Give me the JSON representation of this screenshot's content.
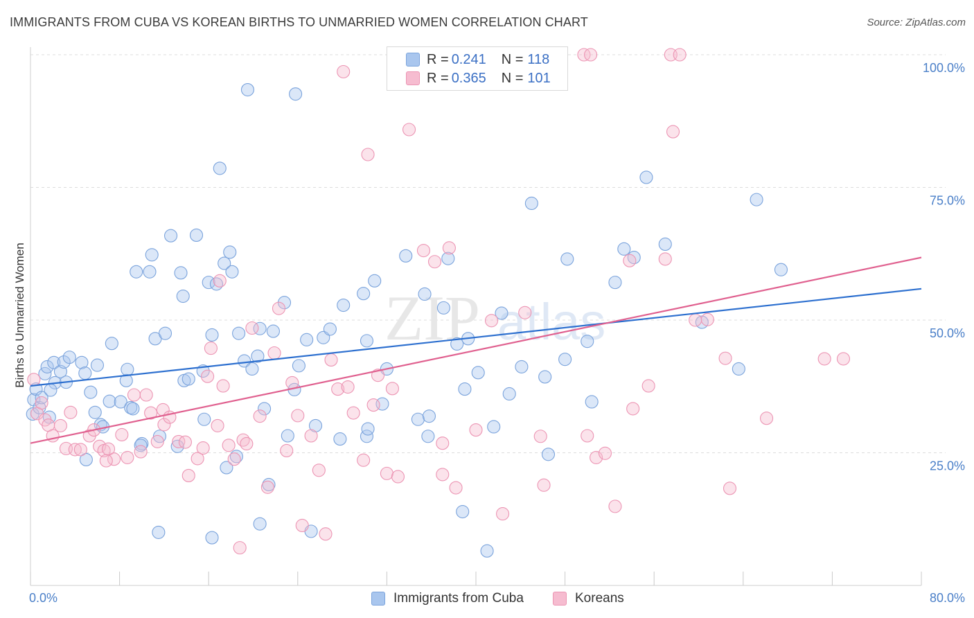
{
  "title": "IMMIGRANTS FROM CUBA VS KOREAN BIRTHS TO UNMARRIED WOMEN CORRELATION CHART",
  "source": "Source: ZipAtlas.com",
  "watermark": {
    "zip": "ZIP",
    "atlas": "atlas"
  },
  "colors": {
    "blue_fill": "#a9c6ee",
    "blue_stroke": "#7aa3dc",
    "blue_line": "#2c6fcf",
    "pink_fill": "#f6bcd0",
    "pink_stroke": "#ec94b3",
    "pink_line": "#e0608f",
    "grid": "#dcdcdc",
    "axis_text": "#4a7fc8"
  },
  "legend_top": {
    "rows": [
      {
        "r_label": "R = ",
        "r_value": "0.241",
        "n_label": "N = ",
        "n_value": "118"
      },
      {
        "r_label": "R = ",
        "r_value": "0.365",
        "n_label": "N = ",
        "n_value": "101"
      }
    ]
  },
  "legend_bottom": {
    "series1": "Immigrants from Cuba",
    "series2": "Koreans"
  },
  "chart_data": {
    "type": "scatter",
    "title": "IMMIGRANTS FROM CUBA VS KOREAN BIRTHS TO UNMARRIED WOMEN CORRELATION CHART",
    "xlabel": "",
    "ylabel": "Births to Unmarried Women",
    "xlim": [
      0,
      80
    ],
    "ylim": [
      0,
      100
    ],
    "x_tick_labels": [
      "0.0%",
      "80.0%"
    ],
    "y_tick_labels": [
      "25.0%",
      "50.0%",
      "75.0%",
      "100.0%"
    ],
    "y_ticks": [
      25,
      50,
      75,
      100
    ],
    "x_minor_ticks": [
      0,
      8,
      16,
      24,
      32,
      40,
      48,
      56,
      64,
      72,
      80
    ],
    "grid": true,
    "legend_position": "top-center",
    "series": [
      {
        "name": "Immigrants from Cuba",
        "r": 0.241,
        "n": 118,
        "trend": {
          "x": [
            0,
            80
          ],
          "y": [
            37.6,
            55.9
          ]
        },
        "points": [
          [
            0.2,
            32.3
          ],
          [
            0.3,
            35.0
          ],
          [
            0.5,
            37.0
          ],
          [
            0.8,
            33.5
          ],
          [
            1.0,
            35.4
          ],
          [
            1.3,
            39.9
          ],
          [
            1.5,
            41.2
          ],
          [
            1.7,
            31.7
          ],
          [
            2.1,
            42.0
          ],
          [
            2.2,
            38.2
          ],
          [
            2.7,
            40.3
          ],
          [
            3.0,
            42.1
          ],
          [
            3.2,
            38.3
          ],
          [
            3.5,
            43.0
          ],
          [
            4.6,
            42.0
          ],
          [
            4.9,
            40.0
          ],
          [
            5.0,
            23.7
          ],
          [
            5.4,
            36.4
          ],
          [
            5.8,
            32.6
          ],
          [
            6.0,
            41.5
          ],
          [
            6.3,
            30.3
          ],
          [
            6.5,
            29.9
          ],
          [
            7.1,
            34.7
          ],
          [
            7.3,
            45.6
          ],
          [
            8.1,
            34.6
          ],
          [
            8.6,
            38.6
          ],
          [
            8.7,
            40.7
          ],
          [
            9.0,
            33.5
          ],
          [
            9.2,
            33.3
          ],
          [
            9.5,
            59.1
          ],
          [
            10.0,
            26.7
          ],
          [
            10.7,
            59.1
          ],
          [
            10.9,
            62.3
          ],
          [
            11.2,
            46.5
          ],
          [
            11.5,
            10.0
          ],
          [
            11.6,
            28.1
          ],
          [
            12.1,
            47.5
          ],
          [
            12.6,
            65.9
          ],
          [
            13.2,
            26.2
          ],
          [
            13.5,
            58.9
          ],
          [
            13.7,
            54.5
          ],
          [
            13.8,
            38.6
          ],
          [
            14.9,
            66.0
          ],
          [
            15.5,
            40.4
          ],
          [
            15.6,
            31.3
          ],
          [
            16.0,
            57.1
          ],
          [
            16.3,
            47.2
          ],
          [
            16.7,
            56.8
          ],
          [
            17.0,
            78.6
          ],
          [
            17.4,
            60.7
          ],
          [
            17.6,
            22.2
          ],
          [
            17.9,
            62.8
          ],
          [
            18.1,
            59.1
          ],
          [
            18.5,
            24.3
          ],
          [
            18.7,
            47.5
          ],
          [
            19.2,
            42.3
          ],
          [
            19.5,
            93.4
          ],
          [
            19.9,
            40.8
          ],
          [
            20.4,
            43.2
          ],
          [
            20.6,
            48.4
          ],
          [
            21.0,
            33.3
          ],
          [
            21.4,
            19.0
          ],
          [
            21.8,
            47.9
          ],
          [
            22.8,
            53.3
          ],
          [
            23.1,
            28.2
          ],
          [
            23.7,
            36.9
          ],
          [
            23.8,
            92.6
          ],
          [
            24.1,
            41.4
          ],
          [
            24.8,
            46.3
          ],
          [
            25.6,
            30.1
          ],
          [
            26.3,
            46.7
          ],
          [
            26.9,
            48.3
          ],
          [
            27.8,
            27.6
          ],
          [
            28.1,
            52.8
          ],
          [
            29.9,
            55.0
          ],
          [
            30.2,
            46.1
          ],
          [
            30.2,
            28.1
          ],
          [
            30.3,
            29.5
          ],
          [
            30.9,
            57.4
          ],
          [
            32.0,
            40.8
          ],
          [
            33.7,
            62.1
          ],
          [
            34.8,
            31.3
          ],
          [
            35.4,
            54.9
          ],
          [
            35.7,
            28.1
          ],
          [
            35.8,
            31.9
          ],
          [
            37.1,
            52.3
          ],
          [
            37.5,
            61.6
          ],
          [
            38.3,
            45.5
          ],
          [
            38.8,
            13.9
          ],
          [
            39.0,
            37.0
          ],
          [
            39.3,
            46.5
          ],
          [
            40.2,
            40.1
          ],
          [
            41.0,
            6.5
          ],
          [
            41.6,
            29.9
          ],
          [
            42.3,
            51.3
          ],
          [
            44.1,
            41.2
          ],
          [
            45.0,
            72.0
          ],
          [
            46.2,
            39.3
          ],
          [
            46.5,
            24.7
          ],
          [
            48.0,
            42.6
          ],
          [
            48.2,
            61.5
          ],
          [
            50.0,
            46.0
          ],
          [
            50.4,
            34.6
          ],
          [
            52.5,
            57.1
          ],
          [
            53.3,
            63.4
          ],
          [
            54.2,
            61.8
          ],
          [
            55.3,
            76.9
          ],
          [
            57.0,
            64.3
          ],
          [
            60.3,
            49.6
          ],
          [
            63.6,
            40.8
          ],
          [
            65.2,
            72.7
          ],
          [
            67.4,
            59.5
          ],
          [
            1.8,
            36.8
          ],
          [
            9.9,
            26.4
          ],
          [
            14.2,
            38.9
          ],
          [
            25.2,
            10.2
          ],
          [
            20.6,
            11.6
          ],
          [
            16.3,
            9.0
          ],
          [
            43.0,
            36.1
          ],
          [
            31.6,
            34.2
          ]
        ]
      },
      {
        "name": "Koreans",
        "r": 0.365,
        "n": 101,
        "trend": {
          "x": [
            0,
            80
          ],
          "y": [
            26.8,
            61.8
          ]
        },
        "points": [
          [
            0.3,
            38.8
          ],
          [
            0.6,
            32.4
          ],
          [
            1.0,
            34.4
          ],
          [
            1.3,
            31.2
          ],
          [
            1.6,
            30.2
          ],
          [
            2.0,
            28.2
          ],
          [
            2.7,
            30.1
          ],
          [
            3.2,
            25.8
          ],
          [
            3.6,
            32.6
          ],
          [
            4.0,
            25.6
          ],
          [
            4.5,
            25.6
          ],
          [
            5.3,
            28.2
          ],
          [
            5.7,
            29.3
          ],
          [
            6.2,
            26.2
          ],
          [
            6.6,
            25.4
          ],
          [
            7.0,
            25.7
          ],
          [
            7.5,
            23.8
          ],
          [
            8.2,
            28.4
          ],
          [
            8.7,
            24.1
          ],
          [
            9.3,
            35.9
          ],
          [
            9.9,
            25.2
          ],
          [
            10.4,
            35.9
          ],
          [
            10.8,
            32.5
          ],
          [
            11.4,
            27.1
          ],
          [
            11.9,
            33.1
          ],
          [
            12.0,
            30.3
          ],
          [
            12.5,
            31.7
          ],
          [
            13.3,
            27.1
          ],
          [
            13.9,
            27.0
          ],
          [
            14.2,
            20.7
          ],
          [
            15.0,
            23.9
          ],
          [
            15.5,
            25.9
          ],
          [
            15.9,
            39.4
          ],
          [
            16.2,
            44.7
          ],
          [
            17.0,
            57.4
          ],
          [
            17.3,
            37.6
          ],
          [
            17.8,
            26.4
          ],
          [
            18.3,
            23.8
          ],
          [
            18.8,
            7.1
          ],
          [
            19.1,
            27.4
          ],
          [
            19.4,
            26.7
          ],
          [
            19.9,
            48.5
          ],
          [
            20.6,
            31.9
          ],
          [
            21.3,
            18.5
          ],
          [
            21.9,
            43.8
          ],
          [
            22.3,
            52.2
          ],
          [
            23.0,
            25.4
          ],
          [
            23.5,
            38.2
          ],
          [
            24.0,
            32.0
          ],
          [
            24.4,
            11.3
          ],
          [
            25.2,
            28.2
          ],
          [
            25.9,
            21.7
          ],
          [
            26.5,
            9.7
          ],
          [
            27.0,
            42.5
          ],
          [
            27.6,
            37.0
          ],
          [
            28.1,
            96.8
          ],
          [
            28.5,
            37.4
          ],
          [
            29.0,
            32.5
          ],
          [
            29.9,
            23.6
          ],
          [
            30.3,
            81.2
          ],
          [
            30.8,
            34.0
          ],
          [
            31.2,
            39.6
          ],
          [
            32.0,
            21.1
          ],
          [
            32.5,
            37.1
          ],
          [
            33.0,
            20.5
          ],
          [
            33.6,
            100.0
          ],
          [
            34.0,
            85.9
          ],
          [
            35.3,
            63.1
          ],
          [
            36.3,
            61.0
          ],
          [
            37.0,
            26.8
          ],
          [
            37.0,
            20.9
          ],
          [
            37.6,
            63.6
          ],
          [
            38.2,
            18.4
          ],
          [
            40.0,
            29.3
          ],
          [
            41.4,
            49.9
          ],
          [
            42.4,
            13.5
          ],
          [
            44.4,
            51.4
          ],
          [
            45.8,
            28.1
          ],
          [
            46.1,
            18.9
          ],
          [
            49.7,
            100.0
          ],
          [
            50.0,
            28.2
          ],
          [
            50.3,
            100.0
          ],
          [
            50.8,
            24.1
          ],
          [
            51.6,
            24.9
          ],
          [
            52.5,
            14.9
          ],
          [
            53.8,
            61.2
          ],
          [
            54.1,
            33.3
          ],
          [
            55.5,
            37.6
          ],
          [
            57.0,
            61.5
          ],
          [
            57.5,
            100.0
          ],
          [
            57.7,
            85.5
          ],
          [
            58.3,
            100.0
          ],
          [
            59.7,
            50.0
          ],
          [
            60.8,
            50.1
          ],
          [
            62.4,
            42.8
          ],
          [
            62.8,
            18.3
          ],
          [
            66.1,
            31.5
          ],
          [
            71.3,
            42.7
          ],
          [
            73.0,
            42.7
          ],
          [
            16.8,
            30.1
          ],
          [
            6.8,
            23.5
          ]
        ]
      }
    ]
  }
}
